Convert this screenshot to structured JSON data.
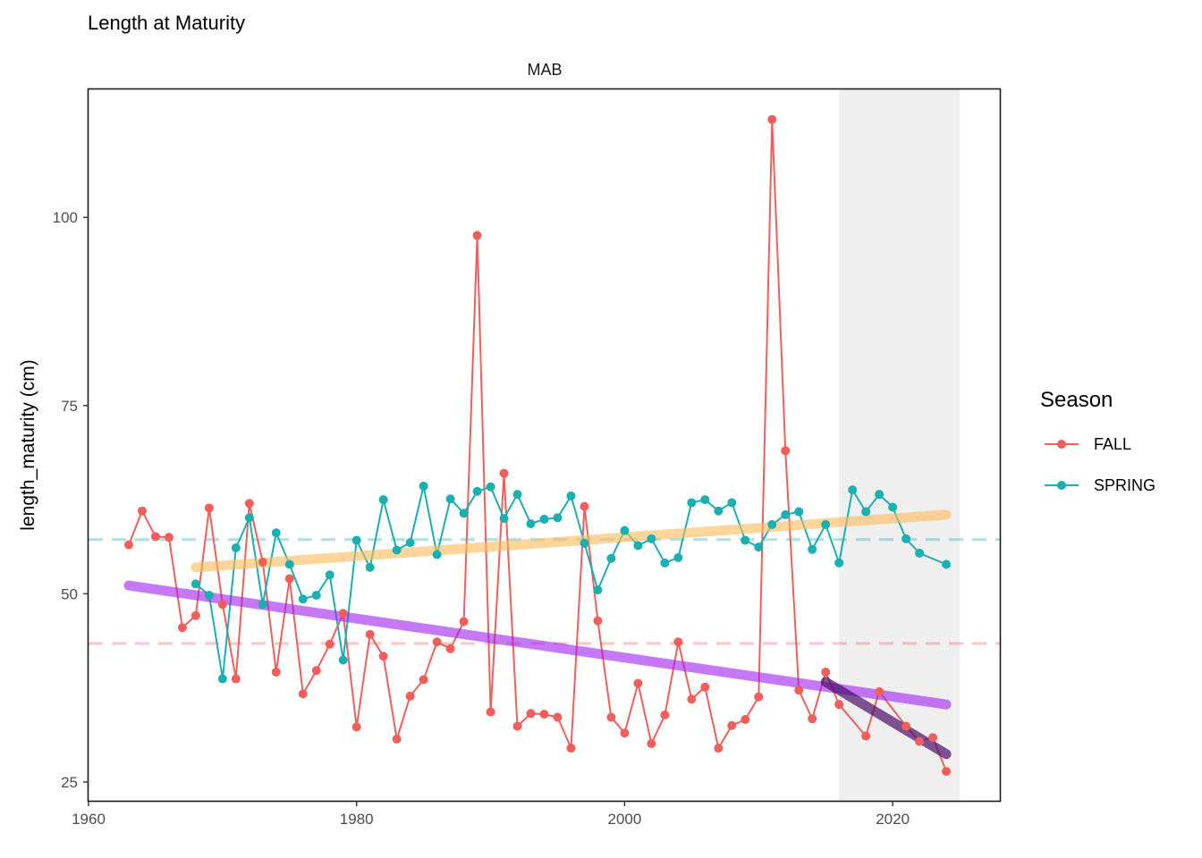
{
  "chart_data": {
    "type": "line",
    "title": "Length at Maturity",
    "facet_label": "MAB",
    "xlabel": "",
    "ylabel": "length_maturity (cm)",
    "xlim": [
      1960,
      2028
    ],
    "ylim": [
      22.5,
      117
    ],
    "x_ticks": [
      1960,
      1980,
      2000,
      2020
    ],
    "y_ticks": [
      25,
      50,
      75,
      100
    ],
    "grid": false,
    "legend": {
      "title": "Season",
      "position": "right"
    },
    "highlight_region": {
      "x0": 2016,
      "x1": 2025,
      "color": "#efefef"
    },
    "series": [
      {
        "name": "FALL",
        "color": "#F05F5B",
        "x": [
          1963,
          1964,
          1965,
          1966,
          1967,
          1968,
          1969,
          1970,
          1971,
          1972,
          1973,
          1974,
          1975,
          1976,
          1977,
          1978,
          1979,
          1980,
          1981,
          1982,
          1983,
          1984,
          1985,
          1986,
          1987,
          1988,
          1989,
          1990,
          1991,
          1992,
          1993,
          1994,
          1995,
          1996,
          1997,
          1998,
          1999,
          2000,
          2001,
          2002,
          2003,
          2004,
          2005,
          2006,
          2007,
          2008,
          2009,
          2010,
          2011,
          2012,
          2013,
          2014,
          2015,
          2016,
          2018,
          2019,
          2021,
          2022,
          2023,
          2024
        ],
        "y": [
          56.5,
          61.0,
          57.6,
          57.5,
          45.5,
          47.1,
          61.4,
          48.6,
          38.7,
          62.0,
          54.2,
          39.6,
          52.0,
          36.7,
          39.8,
          43.3,
          47.4,
          32.3,
          44.6,
          41.7,
          30.7,
          36.4,
          38.6,
          43.6,
          42.7,
          46.3,
          97.6,
          34.3,
          66.0,
          32.4,
          34.1,
          34.0,
          33.6,
          29.5,
          61.6,
          46.4,
          33.6,
          31.5,
          38.1,
          30.1,
          33.9,
          43.6,
          36.0,
          37.6,
          29.5,
          32.5,
          33.3,
          36.3,
          113.0,
          69.0,
          37.2,
          33.4,
          39.6,
          35.3,
          31.1,
          37.0,
          32.4,
          30.4,
          30.9,
          26.4
        ]
      },
      {
        "name": "SPRING",
        "color": "#1AAFB0",
        "x": [
          1968,
          1969,
          1970,
          1971,
          1972,
          1973,
          1974,
          1975,
          1976,
          1977,
          1978,
          1979,
          1980,
          1981,
          1982,
          1983,
          1984,
          1985,
          1986,
          1987,
          1988,
          1989,
          1990,
          1991,
          1992,
          1993,
          1994,
          1995,
          1996,
          1997,
          1998,
          1999,
          2000,
          2001,
          2002,
          2003,
          2004,
          2005,
          2006,
          2007,
          2008,
          2009,
          2010,
          2011,
          2012,
          2013,
          2014,
          2015,
          2016,
          2017,
          2018,
          2019,
          2020,
          2021,
          2022,
          2024
        ],
        "y": [
          51.3,
          49.8,
          38.7,
          56.1,
          60.1,
          48.6,
          58.1,
          53.9,
          49.3,
          49.8,
          52.5,
          41.2,
          57.1,
          53.5,
          62.5,
          55.8,
          56.8,
          64.3,
          55.2,
          62.6,
          60.7,
          63.6,
          64.2,
          60.0,
          63.2,
          59.3,
          59.9,
          60.1,
          63.0,
          56.7,
          50.5,
          54.7,
          58.4,
          56.4,
          57.3,
          54.1,
          54.8,
          62.1,
          62.5,
          61.0,
          62.1,
          57.1,
          56.2,
          59.2,
          60.5,
          60.9,
          55.9,
          59.2,
          54.1,
          63.8,
          60.9,
          63.2,
          61.5,
          57.3,
          55.4,
          53.9
        ]
      }
    ],
    "reference_lines": [
      {
        "series": "FALL",
        "y": 43.4,
        "color": "#F05F5B",
        "style": "dashed"
      },
      {
        "series": "SPRING",
        "y": 57.2,
        "color": "#1AAFB0",
        "style": "dashed"
      }
    ],
    "trend_lines": [
      {
        "series": "SPRING",
        "x": [
          1968,
          2024
        ],
        "y": [
          53.5,
          60.5
        ],
        "color": "#FDBA5A"
      },
      {
        "series": "FALL",
        "x": [
          1963,
          2024
        ],
        "y": [
          51.1,
          35.3
        ],
        "color": "#A020F0"
      },
      {
        "series": "FALL",
        "x": [
          2015,
          2024
        ],
        "y": [
          38.3,
          28.7
        ],
        "color": "#4B0E6B"
      }
    ]
  }
}
